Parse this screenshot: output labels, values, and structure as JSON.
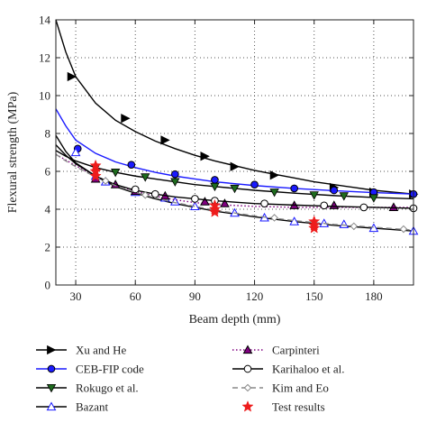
{
  "chart_data": {
    "type": "line",
    "title": "",
    "xlabel": "Beam depth (mm)",
    "ylabel": "Flexural strength (MPa)",
    "xlim": [
      20,
      200
    ],
    "ylim": [
      0,
      14
    ],
    "xticks": [
      30,
      60,
      90,
      120,
      150,
      180
    ],
    "yticks": [
      0,
      2,
      4,
      6,
      8,
      10,
      12,
      14
    ],
    "grid": "dotted",
    "legend_position": "below-plot",
    "series": [
      {
        "name": "Xu and He",
        "color": "#000000",
        "line_style": "solid",
        "marker": "triangle-right",
        "marker_fill": "#000000",
        "curve": {
          "x": [
            20,
            25,
            30,
            40,
            50,
            60,
            70,
            80,
            90,
            100,
            110,
            120,
            130,
            140,
            150,
            160,
            170,
            180,
            190,
            200
          ],
          "y": [
            14.0,
            12.3,
            11.0,
            9.6,
            8.7,
            8.1,
            7.6,
            7.2,
            6.85,
            6.55,
            6.3,
            6.05,
            5.85,
            5.65,
            5.45,
            5.3,
            5.15,
            5.0,
            4.9,
            4.8
          ]
        },
        "markers": {
          "x": [
            28,
            55,
            75,
            95,
            110,
            130,
            160,
            180,
            200
          ],
          "y": [
            11.0,
            8.8,
            7.65,
            6.8,
            6.25,
            5.8,
            5.15,
            4.9,
            4.8
          ]
        }
      },
      {
        "name": "CEB-FIP code",
        "color": "#1a1aff",
        "line_style": "solid",
        "marker": "circle",
        "marker_fill": "#1a1aff",
        "curve": {
          "x": [
            20,
            25,
            30,
            40,
            50,
            60,
            70,
            80,
            90,
            100,
            120,
            140,
            160,
            180,
            200
          ],
          "y": [
            9.3,
            8.4,
            7.65,
            6.95,
            6.5,
            6.2,
            5.95,
            5.75,
            5.6,
            5.45,
            5.25,
            5.1,
            4.98,
            4.88,
            4.8
          ]
        },
        "markers": {
          "x": [
            31,
            58,
            80,
            100,
            120,
            140,
            160,
            180,
            200
          ],
          "y": [
            7.2,
            6.35,
            5.85,
            5.55,
            5.3,
            5.1,
            5.0,
            4.9,
            4.8
          ]
        }
      },
      {
        "name": "Rokugo et al.",
        "color": "#000000",
        "line_style": "solid",
        "marker": "triangle-down",
        "marker_fill": "#1e6b1e",
        "curve": {
          "x": [
            20,
            25,
            30,
            40,
            50,
            60,
            70,
            80,
            90,
            100,
            120,
            140,
            160,
            180,
            200
          ],
          "y": [
            7.1,
            6.8,
            6.55,
            6.2,
            5.95,
            5.75,
            5.6,
            5.45,
            5.3,
            5.2,
            5.0,
            4.85,
            4.72,
            4.62,
            4.55
          ]
        },
        "markers": {
          "x": [
            40,
            50,
            65,
            80,
            100,
            110,
            130,
            150,
            165,
            180
          ],
          "y": [
            6.2,
            5.95,
            5.7,
            5.45,
            5.2,
            5.1,
            4.9,
            4.75,
            4.7,
            4.6
          ]
        }
      },
      {
        "name": "Bazant",
        "color": "#000000",
        "line_style": "solid",
        "marker": "triangle-up",
        "marker_fill": "#ffffff",
        "marker_stroke": "#1a1aff",
        "curve": {
          "x": [
            20,
            25,
            30,
            40,
            50,
            60,
            70,
            80,
            90,
            100,
            120,
            140,
            160,
            180,
            200
          ],
          "y": [
            7.9,
            7.05,
            6.45,
            5.75,
            5.2,
            4.85,
            4.55,
            4.3,
            4.1,
            3.9,
            3.6,
            3.35,
            3.15,
            3.0,
            2.85
          ]
        },
        "markers": {
          "x": [
            30,
            40,
            45,
            60,
            75,
            80,
            90,
            110,
            125,
            140,
            155,
            165,
            180,
            200
          ],
          "y": [
            7.0,
            5.75,
            5.45,
            4.9,
            4.6,
            4.4,
            4.15,
            3.8,
            3.55,
            3.35,
            3.25,
            3.2,
            3.0,
            2.85
          ]
        }
      },
      {
        "name": "Carpinteri",
        "color": "#800080",
        "line_style": "dotted",
        "marker": "triangle-up",
        "marker_fill": "#800080",
        "curve": {
          "x": [
            20,
            25,
            30,
            40,
            50,
            60,
            70,
            80,
            90,
            100,
            120,
            140,
            160,
            180,
            200
          ],
          "y": [
            6.9,
            6.6,
            6.3,
            5.75,
            5.3,
            4.95,
            4.7,
            4.5,
            4.35,
            4.25,
            4.15,
            4.1,
            4.1,
            4.1,
            4.1
          ]
        },
        "markers": {
          "x": [
            40,
            50,
            60,
            75,
            95,
            105,
            140,
            160,
            190
          ],
          "y": [
            5.6,
            5.3,
            4.95,
            4.7,
            4.4,
            4.3,
            4.2,
            4.2,
            4.1
          ]
        }
      },
      {
        "name": "Karihaloo et al.",
        "color": "#000000",
        "line_style": "solid",
        "marker": "circle",
        "marker_fill": "#ffffff",
        "curve": {
          "x": [
            20,
            25,
            30,
            40,
            50,
            60,
            70,
            80,
            90,
            100,
            120,
            140,
            160,
            180,
            200
          ],
          "y": [
            7.4,
            6.85,
            6.4,
            5.75,
            5.3,
            5.0,
            4.8,
            4.65,
            4.55,
            4.45,
            4.3,
            4.22,
            4.15,
            4.1,
            4.05
          ]
        },
        "markers": {
          "x": [
            60,
            70,
            90,
            100,
            125,
            155,
            175,
            200
          ],
          "y": [
            5.05,
            4.8,
            4.55,
            4.45,
            4.3,
            4.2,
            4.1,
            4.05
          ]
        }
      },
      {
        "name": "Kim and Eo",
        "color": "#888888",
        "line_style": "dashed",
        "marker": "diamond",
        "marker_fill": "#ffffff",
        "marker_stroke": "#888888",
        "curve": {
          "x": [
            20,
            25,
            30,
            40,
            50,
            60,
            70,
            80,
            90,
            100,
            120,
            140,
            160,
            180,
            200
          ],
          "y": [
            6.9,
            6.55,
            6.25,
            5.7,
            5.25,
            4.9,
            4.6,
            4.35,
            4.15,
            3.95,
            3.65,
            3.4,
            3.2,
            3.05,
            2.9
          ]
        },
        "markers": {
          "x": [
            45,
            65,
            100,
            130,
            170,
            195
          ],
          "y": [
            5.5,
            4.75,
            3.95,
            3.55,
            3.1,
            2.95
          ]
        }
      },
      {
        "name": "Test results",
        "color": "#ee1c1c",
        "line_style": "none",
        "marker": "star",
        "marker_fill": "#ee1c1c",
        "markers": {
          "x": [
            40,
            40,
            40,
            100,
            100,
            100,
            150,
            150,
            150
          ],
          "y": [
            6.3,
            6.0,
            5.75,
            4.2,
            4.0,
            3.85,
            3.35,
            3.15,
            3.0
          ]
        }
      }
    ]
  }
}
